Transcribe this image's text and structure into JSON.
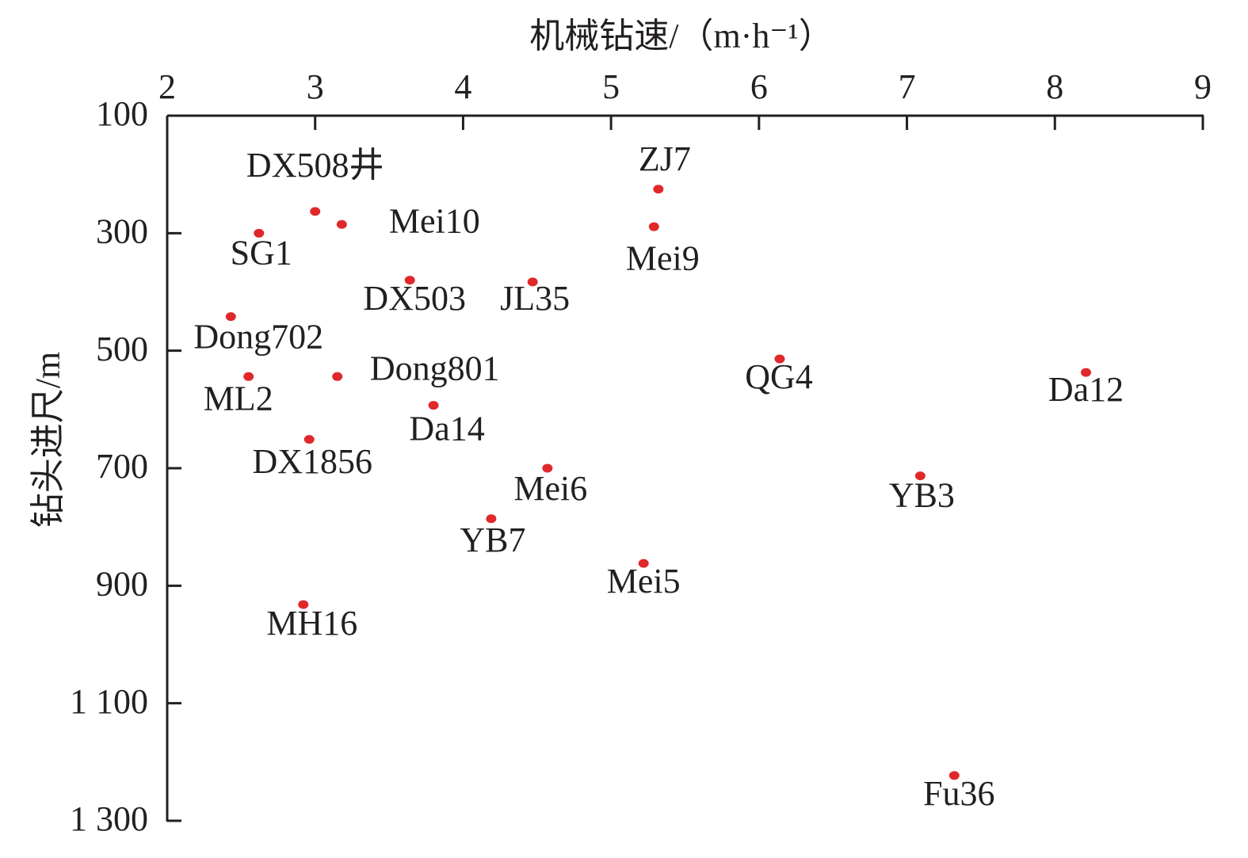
{
  "chart_data": {
    "type": "scatter",
    "x_label": "机械钻速/（m·h⁻¹）",
    "y_label": "钻头进尺/m",
    "xlim": [
      2,
      9
    ],
    "xticks": [
      2,
      3,
      4,
      5,
      6,
      7,
      8,
      9
    ],
    "ylim": [
      100,
      1300
    ],
    "y_inverted": true,
    "yticks": [
      100,
      300,
      500,
      700,
      900,
      {
        "value": 1100,
        "label": "1 100"
      },
      {
        "value": 1300,
        "label": "1 300"
      }
    ],
    "series": [
      {
        "color": "#e0282b",
        "labels": [
          "DX508井",
          "Mei10",
          "SG1",
          "ZJ7",
          "Mei9",
          "DX503",
          "JL35",
          "Dong702",
          "QG4",
          "Da12",
          "ML2",
          "Dong801",
          "Da14",
          "DX1856",
          "Mei6",
          "YB3",
          "YB7",
          "Mei5",
          "MH16",
          "Fu36"
        ],
        "x": [
          3.0,
          3.18,
          2.62,
          5.32,
          5.29,
          3.64,
          4.47,
          2.43,
          6.14,
          8.21,
          2.55,
          3.15,
          3.8,
          2.96,
          4.57,
          7.09,
          4.19,
          5.22,
          2.92,
          7.32
        ],
        "values": [
          263,
          285,
          300,
          225,
          289,
          380,
          383,
          442,
          514,
          537,
          544,
          544,
          593,
          651,
          700,
          713,
          786,
          862,
          932,
          1223
        ]
      }
    ]
  }
}
